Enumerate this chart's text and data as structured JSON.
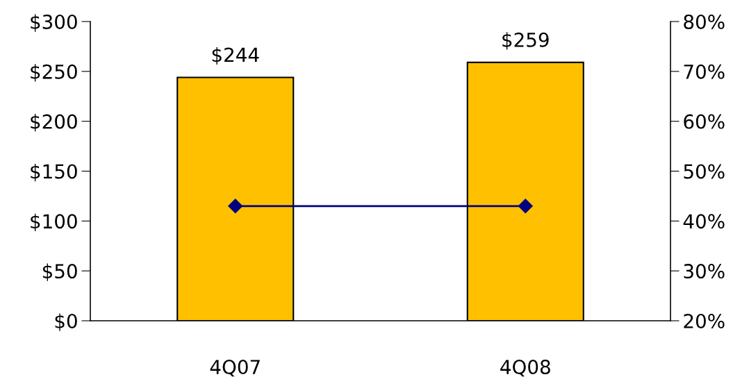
{
  "chart_data": {
    "type": "bar",
    "categories": [
      "4Q07",
      "4Q08"
    ],
    "series": [
      {
        "color": "#ffc000",
        "values": [
          244,
          259
        ],
        "value_labels": [
          "$244",
          "$259"
        ]
      },
      {
        "type": "line",
        "axis": "y2",
        "color": "#000080",
        "values": [
          43,
          43
        ]
      }
    ],
    "marker": "diamond",
    "grid": false,
    "legend": false,
    "ylim": [
      0,
      300
    ],
    "yticks": [
      {
        "value": 0,
        "label": "$0"
      },
      {
        "value": 50,
        "label": "$50"
      },
      {
        "value": 100,
        "label": "$100"
      },
      {
        "value": 150,
        "label": "$150"
      },
      {
        "value": 200,
        "label": "$200"
      },
      {
        "value": 250,
        "label": "$250"
      },
      {
        "value": 300,
        "label": "$300"
      }
    ],
    "y2lim": [
      20,
      80
    ],
    "y2ticks": [
      {
        "value": 20,
        "label": "20%"
      },
      {
        "value": 30,
        "label": "30%"
      },
      {
        "value": 40,
        "label": "40%"
      },
      {
        "value": 50,
        "label": "50%"
      },
      {
        "value": 60,
        "label": "60%"
      },
      {
        "value": 70,
        "label": "70%"
      },
      {
        "value": 80,
        "label": "80%"
      }
    ]
  }
}
